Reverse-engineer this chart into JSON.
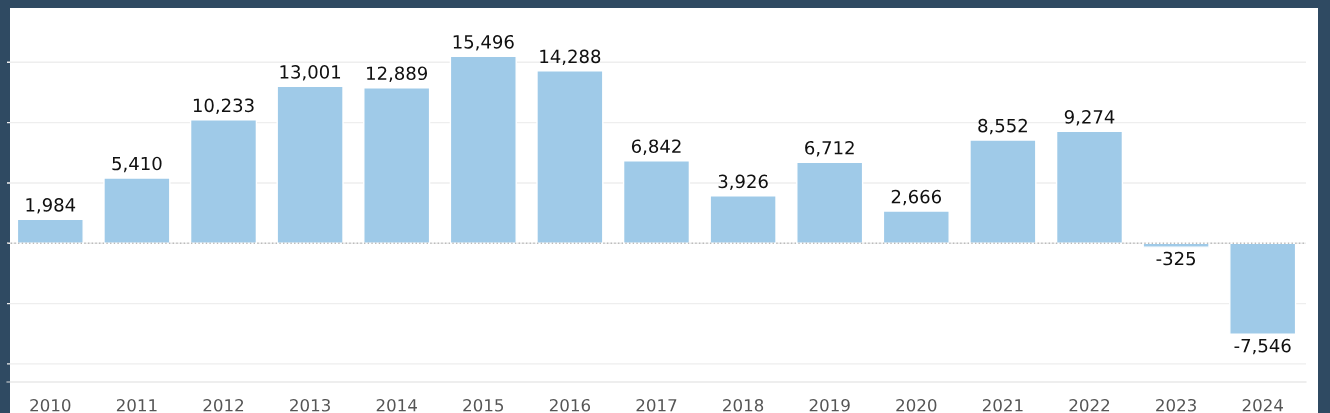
{
  "chart_data": {
    "type": "bar",
    "categories": [
      "2010",
      "2011",
      "2012",
      "2013",
      "2014",
      "2015",
      "2016",
      "2017",
      "2018",
      "2019",
      "2020",
      "2021",
      "2022",
      "2023",
      "2024"
    ],
    "values": [
      1984,
      5410,
      10233,
      13001,
      12889,
      15496,
      14288,
      6842,
      3926,
      6712,
      2666,
      8552,
      9274,
      -325,
      -7546
    ],
    "color": "#9fcae8",
    "value_labels": [
      "1,984",
      "5,410",
      "10,233",
      "13,001",
      "12,889",
      "15,496",
      "14,288",
      "6,842",
      "3,926",
      "6,712",
      "2,666",
      "8,552",
      "9,274",
      "-325",
      "-7,546"
    ],
    "ylim": [
      -11500,
      19500
    ],
    "yticks": [
      {
        "value": -10000,
        "label": null
      },
      {
        "value": -5000,
        "label": null
      },
      {
        "value": 0,
        "label": null
      },
      {
        "value": 5000,
        "label": null
      },
      {
        "value": 10000,
        "label": null
      },
      {
        "value": 15000,
        "label": null
      }
    ],
    "tick_labels": "x",
    "grid": "y",
    "ref_lines": [
      {
        "axis": "y",
        "value": 0,
        "color": "#bbbbbb",
        "line_style": "dotted"
      }
    ]
  }
}
